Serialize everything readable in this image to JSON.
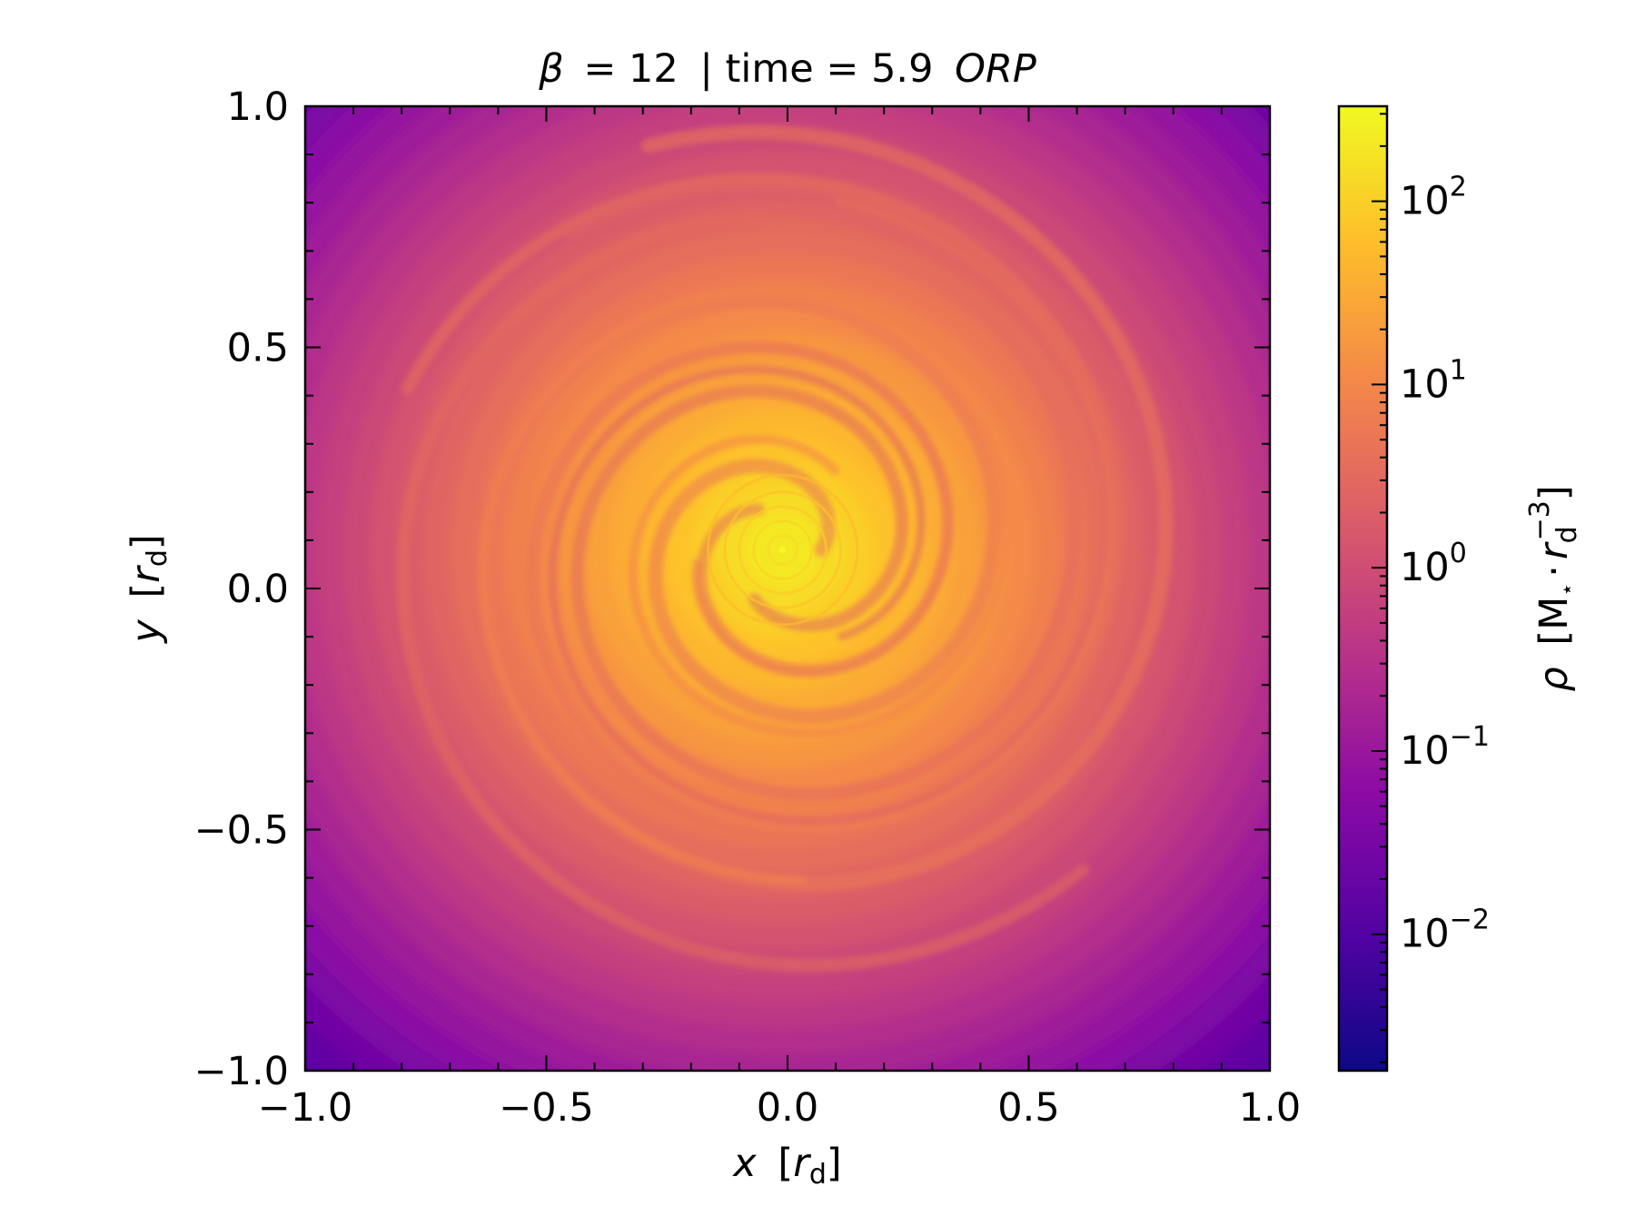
{
  "chart_data": {
    "type": "heatmap",
    "title": {
      "beta_symbol": "β",
      "beta_value": "= 12",
      "separator": "| time = 5.9",
      "time_unit": "ORP"
    },
    "xlabel": {
      "var": "x",
      "unit_open": "[",
      "unit_var": "r",
      "unit_sub": "d",
      "unit_close": "]"
    },
    "ylabel": {
      "var": "y",
      "unit_open": "[",
      "unit_var": "r",
      "unit_sub": "d",
      "unit_close": "]"
    },
    "xlim": [
      -1.0,
      1.0
    ],
    "ylim": [
      -1.0,
      1.0
    ],
    "x_ticks": [
      {
        "value": -1.0,
        "label": "−1.0"
      },
      {
        "value": -0.5,
        "label": "−0.5"
      },
      {
        "value": 0.0,
        "label": "0.0"
      },
      {
        "value": 0.5,
        "label": "0.5"
      },
      {
        "value": 1.0,
        "label": "1.0"
      }
    ],
    "y_ticks": [
      {
        "value": -1.0,
        "label": "−1.0"
      },
      {
        "value": -0.5,
        "label": "−0.5"
      },
      {
        "value": 0.0,
        "label": "0.0"
      },
      {
        "value": 0.5,
        "label": "0.5"
      },
      {
        "value": 1.0,
        "label": "1.0"
      }
    ],
    "minor_tick_step": 0.1,
    "colormap": "plasma",
    "colormap_stops": [
      "#0d0887",
      "#5302a3",
      "#8b0aa5",
      "#b83289",
      "#db5c68",
      "#f48849",
      "#febd2a",
      "#f0f921"
    ],
    "colorbar": {
      "scale": "log",
      "range": [
        0.0018,
        330
      ],
      "label": {
        "var": "ρ",
        "open": "[M",
        "star": "⋆",
        "dot": "·",
        "var2": "r",
        "sub": "d",
        "sup": "−3",
        "close": "]"
      },
      "ticks": [
        {
          "value": 0.01,
          "base": "10",
          "exp": "−2"
        },
        {
          "value": 0.1,
          "base": "10",
          "exp": "−1"
        },
        {
          "value": 1,
          "base": "10",
          "exp": "0"
        },
        {
          "value": 10,
          "base": "10",
          "exp": "1"
        },
        {
          "value": 100,
          "base": "10",
          "exp": "2"
        }
      ]
    },
    "field_center": [
      -0.01,
      0.08
    ]
  }
}
